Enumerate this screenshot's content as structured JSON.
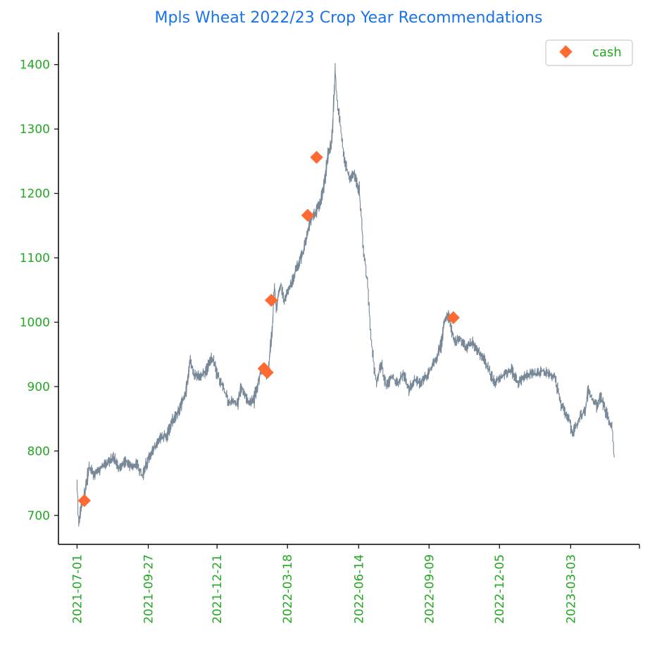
{
  "chart_data": {
    "type": "line",
    "title": "Mpls Wheat 2022/23 Crop Year Recommendations",
    "xlabel": "",
    "ylabel": "",
    "x_ticks": [
      "2021-07-01",
      "2021-09-27",
      "2021-12-21",
      "2022-03-18",
      "2022-06-14",
      "2022-09-09",
      "2022-12-05",
      "2023-03-03"
    ],
    "y_ticks": [
      700,
      800,
      900,
      1000,
      1100,
      1200,
      1300,
      1400
    ],
    "xlim": [
      "2021-06-08",
      "2023-05-27"
    ],
    "ylim": [
      655,
      1450
    ],
    "grid": false,
    "legend": {
      "location": "top-right",
      "entries": [
        "cash"
      ]
    },
    "colors": {
      "title": "#1a73e8",
      "ticks": "#22a822",
      "price_line": "#778899",
      "marker": "#ff6a33",
      "axis": "#000000"
    },
    "series": [
      {
        "kind": "price",
        "points": [
          [
            "2021-07-01",
            745
          ],
          [
            "2021-07-03",
            690
          ],
          [
            "2021-07-05",
            705
          ],
          [
            "2021-07-10",
            730
          ],
          [
            "2021-07-16",
            775
          ],
          [
            "2021-07-22",
            762
          ],
          [
            "2021-07-28",
            770
          ],
          [
            "2021-08-05",
            780
          ],
          [
            "2021-08-15",
            790
          ],
          [
            "2021-08-22",
            775
          ],
          [
            "2021-08-30",
            785
          ],
          [
            "2021-09-06",
            775
          ],
          [
            "2021-09-13",
            780
          ],
          [
            "2021-09-20",
            760
          ],
          [
            "2021-09-27",
            790
          ],
          [
            "2021-10-05",
            805
          ],
          [
            "2021-10-12",
            820
          ],
          [
            "2021-10-20",
            825
          ],
          [
            "2021-10-28",
            850
          ],
          [
            "2021-11-05",
            865
          ],
          [
            "2021-11-12",
            890
          ],
          [
            "2021-11-18",
            940
          ],
          [
            "2021-11-22",
            920
          ],
          [
            "2021-11-30",
            915
          ],
          [
            "2021-12-08",
            925
          ],
          [
            "2021-12-15",
            945
          ],
          [
            "2021-12-21",
            920
          ],
          [
            "2021-12-28",
            900
          ],
          [
            "2022-01-05",
            875
          ],
          [
            "2022-01-10",
            880
          ],
          [
            "2022-01-15",
            870
          ],
          [
            "2022-01-20",
            900
          ],
          [
            "2022-01-25",
            885
          ],
          [
            "2022-01-30",
            875
          ],
          [
            "2022-02-05",
            880
          ],
          [
            "2022-02-12",
            920
          ],
          [
            "2022-02-18",
            925
          ],
          [
            "2022-02-22",
            915
          ],
          [
            "2022-02-25",
            960
          ],
          [
            "2022-02-28",
            1000
          ],
          [
            "2022-03-02",
            1060
          ],
          [
            "2022-03-04",
            1020
          ],
          [
            "2022-03-07",
            1040
          ],
          [
            "2022-03-10",
            1060
          ],
          [
            "2022-03-14",
            1035
          ],
          [
            "2022-03-18",
            1045
          ],
          [
            "2022-03-23",
            1060
          ],
          [
            "2022-03-28",
            1080
          ],
          [
            "2022-04-02",
            1095
          ],
          [
            "2022-04-07",
            1110
          ],
          [
            "2022-04-12",
            1140
          ],
          [
            "2022-04-17",
            1165
          ],
          [
            "2022-04-22",
            1170
          ],
          [
            "2022-04-28",
            1185
          ],
          [
            "2022-05-03",
            1220
          ],
          [
            "2022-05-08",
            1265
          ],
          [
            "2022-05-12",
            1280
          ],
          [
            "2022-05-16",
            1395
          ],
          [
            "2022-05-18",
            1345
          ],
          [
            "2022-05-20",
            1330
          ],
          [
            "2022-05-23",
            1300
          ],
          [
            "2022-05-26",
            1260
          ],
          [
            "2022-05-30",
            1240
          ],
          [
            "2022-06-03",
            1220
          ],
          [
            "2022-06-08",
            1230
          ],
          [
            "2022-06-12",
            1215
          ],
          [
            "2022-06-15",
            1200
          ],
          [
            "2022-06-20",
            1115
          ],
          [
            "2022-06-25",
            1060
          ],
          [
            "2022-06-29",
            980
          ],
          [
            "2022-07-03",
            930
          ],
          [
            "2022-07-06",
            910
          ],
          [
            "2022-07-12",
            935
          ],
          [
            "2022-07-18",
            900
          ],
          [
            "2022-07-25",
            915
          ],
          [
            "2022-08-01",
            905
          ],
          [
            "2022-08-08",
            920
          ],
          [
            "2022-08-15",
            895
          ],
          [
            "2022-08-22",
            910
          ],
          [
            "2022-08-29",
            905
          ],
          [
            "2022-09-05",
            915
          ],
          [
            "2022-09-12",
            930
          ],
          [
            "2022-09-18",
            945
          ],
          [
            "2022-09-24",
            965
          ],
          [
            "2022-09-28",
            1000
          ],
          [
            "2022-10-03",
            1010
          ],
          [
            "2022-10-07",
            985
          ],
          [
            "2022-10-12",
            970
          ],
          [
            "2022-10-18",
            975
          ],
          [
            "2022-10-25",
            960
          ],
          [
            "2022-11-01",
            970
          ],
          [
            "2022-11-08",
            955
          ],
          [
            "2022-11-15",
            945
          ],
          [
            "2022-11-22",
            925
          ],
          [
            "2022-11-29",
            905
          ],
          [
            "2022-12-05",
            915
          ],
          [
            "2022-12-12",
            920
          ],
          [
            "2022-12-20",
            925
          ],
          [
            "2022-12-28",
            905
          ],
          [
            "2023-01-05",
            915
          ],
          [
            "2023-01-12",
            920
          ],
          [
            "2023-01-20",
            920
          ],
          [
            "2023-01-28",
            925
          ],
          [
            "2023-02-05",
            918
          ],
          [
            "2023-02-12",
            915
          ],
          [
            "2023-02-18",
            875
          ],
          [
            "2023-02-24",
            860
          ],
          [
            "2023-03-01",
            850
          ],
          [
            "2023-03-05",
            825
          ],
          [
            "2023-03-10",
            840
          ],
          [
            "2023-03-15",
            855
          ],
          [
            "2023-03-20",
            860
          ],
          [
            "2023-03-25",
            895
          ],
          [
            "2023-03-30",
            880
          ],
          [
            "2023-04-04",
            870
          ],
          [
            "2023-04-09",
            885
          ],
          [
            "2023-04-14",
            865
          ],
          [
            "2023-04-19",
            850
          ],
          [
            "2023-04-23",
            835
          ],
          [
            "2023-04-26",
            790
          ]
        ]
      },
      {
        "kind": "cash",
        "name": "cash",
        "points": [
          [
            "2021-07-10",
            723
          ],
          [
            "2022-02-17",
            928
          ],
          [
            "2022-02-21",
            922
          ],
          [
            "2022-02-26",
            1034
          ],
          [
            "2022-04-12",
            1166
          ],
          [
            "2022-04-23",
            1256
          ],
          [
            "2022-10-09",
            1007
          ]
        ]
      }
    ]
  }
}
